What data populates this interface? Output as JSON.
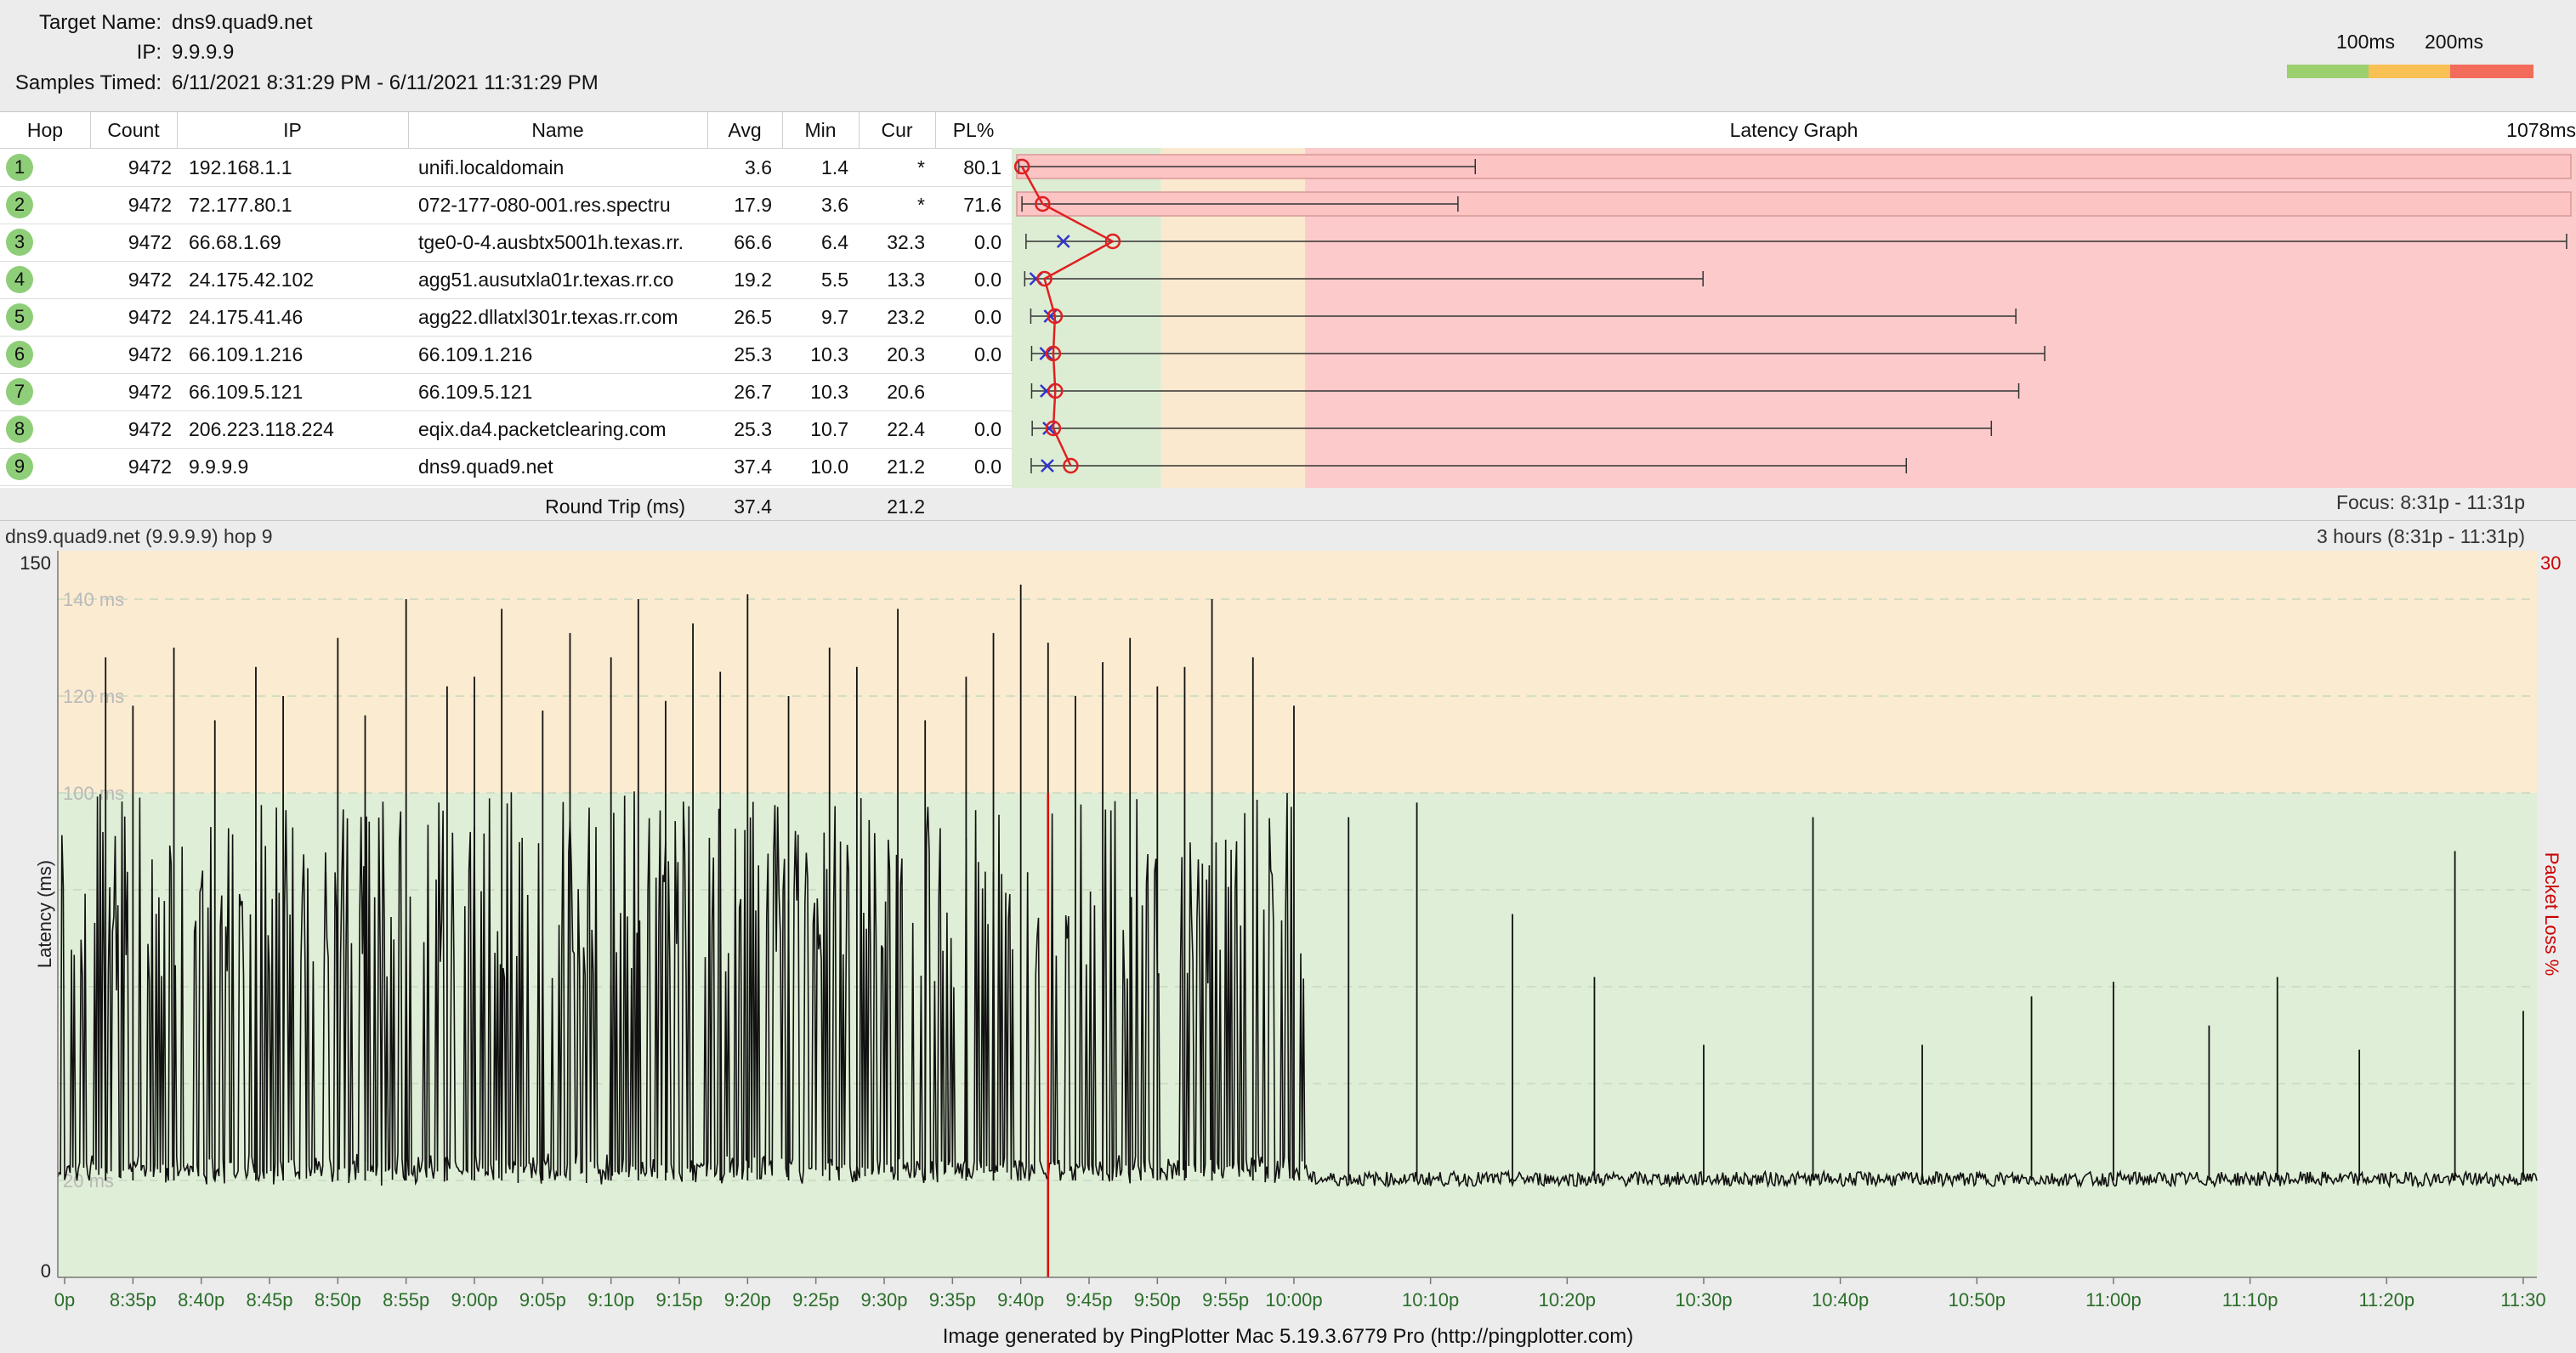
{
  "info": {
    "target_label": "Target Name:",
    "target_value": "dns9.quad9.net",
    "ip_label": "IP:",
    "ip_value": "9.9.9.9",
    "samples_label": "Samples Timed:",
    "samples_value": "6/11/2021 8:31:29 PM - 6/11/2021 11:31:29 PM"
  },
  "scale": {
    "label_100": "100ms",
    "label_200": "200ms",
    "colors": [
      "#9ccf6e",
      "#f9c054",
      "#f36b5a"
    ]
  },
  "table": {
    "headers": {
      "hop": "Hop",
      "count": "Count",
      "ip": "IP",
      "name": "Name",
      "avg": "Avg",
      "min": "Min",
      "cur": "Cur",
      "pl": "PL%"
    },
    "rows": [
      {
        "hop": "1",
        "count": "9472",
        "ip": "192.168.1.1",
        "name": "unifi.localdomain",
        "avg": "3.6",
        "min": "1.4",
        "cur": "*",
        "pl": "80.1"
      },
      {
        "hop": "2",
        "count": "9472",
        "ip": "72.177.80.1",
        "name": "072-177-080-001.res.spectru",
        "avg": "17.9",
        "min": "3.6",
        "cur": "*",
        "pl": "71.6"
      },
      {
        "hop": "3",
        "count": "9472",
        "ip": "66.68.1.69",
        "name": "tge0-0-4.ausbtx5001h.texas.rr.",
        "avg": "66.6",
        "min": "6.4",
        "cur": "32.3",
        "pl": "0.0"
      },
      {
        "hop": "4",
        "count": "9472",
        "ip": "24.175.42.102",
        "name": "agg51.ausutxla01r.texas.rr.co",
        "avg": "19.2",
        "min": "5.5",
        "cur": "13.3",
        "pl": "0.0"
      },
      {
        "hop": "5",
        "count": "9472",
        "ip": "24.175.41.46",
        "name": "agg22.dllatxl301r.texas.rr.com",
        "avg": "26.5",
        "min": "9.7",
        "cur": "23.2",
        "pl": "0.0"
      },
      {
        "hop": "6",
        "count": "9472",
        "ip": "66.109.1.216",
        "name": "66.109.1.216",
        "avg": "25.3",
        "min": "10.3",
        "cur": "20.3",
        "pl": "0.0"
      },
      {
        "hop": "7",
        "count": "9472",
        "ip": "66.109.5.121",
        "name": "66.109.5.121",
        "avg": "26.7",
        "min": "10.3",
        "cur": "20.6",
        "pl": ""
      },
      {
        "hop": "8",
        "count": "9472",
        "ip": "206.223.118.224",
        "name": "eqix.da4.packetclearing.com",
        "avg": "25.3",
        "min": "10.7",
        "cur": "22.4",
        "pl": "0.0"
      },
      {
        "hop": "9",
        "count": "9472",
        "ip": "9.9.9.9",
        "name": "dns9.quad9.net",
        "avg": "37.4",
        "min": "10.0",
        "cur": "21.2",
        "pl": "0.0"
      }
    ],
    "round_trip_label": "Round Trip (ms)",
    "round_trip_avg": "37.4",
    "round_trip_cur": "21.2"
  },
  "latency_graph": {
    "title": "Latency Graph",
    "max_label": "1078ms",
    "max_ms": 1078,
    "zone_limits_ms": [
      100,
      200
    ],
    "zone_colors": [
      "#dcedd4",
      "#fbe9cf",
      "#fccaca"
    ],
    "hops": [
      {
        "min": 1.4,
        "avg": 3.6,
        "max": 318,
        "cur": null,
        "loss_bar": true
      },
      {
        "min": 3.6,
        "avg": 17.9,
        "max": 306,
        "cur": null,
        "loss_bar": true
      },
      {
        "min": 6.4,
        "avg": 66.6,
        "max": 1075,
        "cur": 32.3,
        "loss_bar": false
      },
      {
        "min": 5.5,
        "avg": 19.2,
        "max": 476,
        "cur": 13.3,
        "loss_bar": false
      },
      {
        "min": 9.7,
        "avg": 26.5,
        "max": 693,
        "cur": 23.2,
        "loss_bar": false
      },
      {
        "min": 10.3,
        "avg": 25.3,
        "max": 713,
        "cur": 20.3,
        "loss_bar": false
      },
      {
        "min": 10.3,
        "avg": 26.7,
        "max": 695,
        "cur": 20.6,
        "loss_bar": false
      },
      {
        "min": 10.7,
        "avg": 25.3,
        "max": 676,
        "cur": 22.4,
        "loss_bar": false
      },
      {
        "min": 10.0,
        "avg": 37.4,
        "max": 617,
        "cur": 21.2,
        "loss_bar": false
      }
    ]
  },
  "focus_label": "Focus: 8:31p - 11:31p",
  "chart_header": {
    "title": "dns9.quad9.net (9.9.9.9) hop 9",
    "range": "3 hours (8:31p - 11:31p)"
  },
  "chart_data": {
    "type": "line",
    "title": "dns9.quad9.net (9.9.9.9) hop 9",
    "ylabel": "Latency (ms)",
    "y2label": "Packet Loss %",
    "ylim": [
      0,
      150
    ],
    "y2max": "30",
    "y_axis_labels": [
      "150",
      "0"
    ],
    "band_labels": [
      "140 ms",
      "120 ms",
      "100 ms",
      "20 ms"
    ],
    "zone_colors": [
      "#dfeed6",
      "#fbebd1"
    ],
    "zone_limit_ms": 100,
    "x_ticks": [
      "0p",
      "8:35p",
      "8:40p",
      "8:45p",
      "8:50p",
      "8:55p",
      "9:00p",
      "9:05p",
      "9:10p",
      "9:15p",
      "9:20p",
      "9:25p",
      "9:30p",
      "9:35p",
      "9:40p",
      "9:45p",
      "9:50p",
      "9:55p",
      "10:00p",
      "10:10p",
      "10:20p",
      "10:30p",
      "10:40p",
      "10:50p",
      "11:00p",
      "11:10p",
      "11:20p",
      "11:30"
    ],
    "x_tick_minutes": [
      30,
      35,
      40,
      45,
      50,
      55,
      60,
      65,
      70,
      75,
      80,
      85,
      90,
      95,
      100,
      105,
      110,
      115,
      120,
      130,
      140,
      150,
      160,
      170,
      180,
      190,
      200,
      210
    ],
    "time_window_minutes": [
      29.5,
      211
    ],
    "spike_phase_end_minute": 121,
    "baseline_ms": 20,
    "series": [
      {
        "color": "#111111",
        "spikes": [
          [
            33,
            128
          ],
          [
            35,
            118
          ],
          [
            38,
            130
          ],
          [
            41,
            115
          ],
          [
            44,
            126
          ],
          [
            46,
            120
          ],
          [
            50,
            132
          ],
          [
            52,
            116
          ],
          [
            55,
            140
          ],
          [
            58,
            122
          ],
          [
            60,
            124
          ],
          [
            62,
            138
          ],
          [
            65,
            117
          ],
          [
            67,
            133
          ],
          [
            70,
            128
          ],
          [
            72,
            140
          ],
          [
            74,
            119
          ],
          [
            76,
            135
          ],
          [
            78,
            125
          ],
          [
            80,
            141
          ],
          [
            83,
            120
          ],
          [
            86,
            130
          ],
          [
            88,
            126
          ],
          [
            91,
            138
          ],
          [
            93,
            115
          ],
          [
            96,
            124
          ],
          [
            98,
            133
          ],
          [
            100,
            143
          ],
          [
            102,
            131
          ],
          [
            104,
            120
          ],
          [
            106,
            127
          ],
          [
            108,
            132
          ],
          [
            110,
            122
          ],
          [
            112,
            126
          ],
          [
            114,
            140
          ],
          [
            117,
            128
          ],
          [
            120,
            118
          ],
          [
            124,
            95
          ],
          [
            129,
            98
          ],
          [
            136,
            75
          ],
          [
            142,
            62
          ],
          [
            150,
            48
          ],
          [
            158,
            95
          ],
          [
            166,
            48
          ],
          [
            174,
            58
          ],
          [
            180,
            61
          ],
          [
            187,
            52
          ],
          [
            192,
            62
          ],
          [
            198,
            47
          ],
          [
            205,
            88
          ],
          [
            210,
            55
          ]
        ]
      },
      {
        "color": "#dd0000",
        "name": "",
        "loss_marks": [
          [
            102,
            100
          ]
        ]
      }
    ]
  },
  "footer": "Image generated by PingPlotter Mac 5.19.3.6779 Pro (http://pingplotter.com)"
}
